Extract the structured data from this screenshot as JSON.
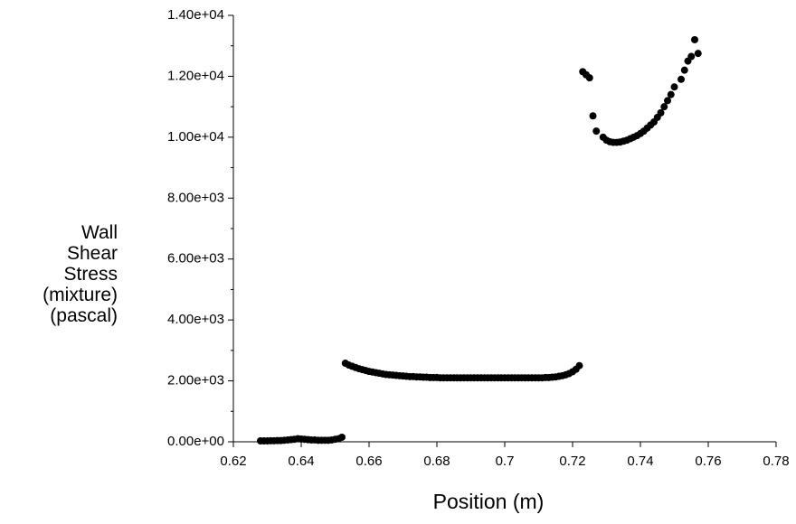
{
  "chart_data": {
    "type": "scatter",
    "x_label": "Position (m)",
    "y_label": "Wall Shear Stress (mixture) (pascal)",
    "color": "#000000",
    "xlim": [
      0.62,
      0.78
    ],
    "xticks": [
      0.62,
      0.64,
      0.66,
      0.68,
      0.7,
      0.72,
      0.74,
      0.76,
      0.78
    ],
    "ylim": [
      0,
      14000
    ],
    "yticks": [
      {
        "value": 0,
        "label": "0.00e+00"
      },
      {
        "value": 2000,
        "label": "2.00e+03"
      },
      {
        "value": 4000,
        "label": "4.00e+03"
      },
      {
        "value": 6000,
        "label": "6.00e+03"
      },
      {
        "value": 8000,
        "label": "8.00e+03"
      },
      {
        "value": 10000,
        "label": "1.00e+04"
      },
      {
        "value": 12000,
        "label": "1.20e+04"
      },
      {
        "value": 14000,
        "label": "1.40e+04"
      }
    ],
    "x": [
      0.628,
      0.629,
      0.63,
      0.631,
      0.632,
      0.633,
      0.634,
      0.635,
      0.636,
      0.637,
      0.638,
      0.639,
      0.64,
      0.641,
      0.642,
      0.643,
      0.644,
      0.645,
      0.646,
      0.647,
      0.648,
      0.649,
      0.65,
      0.651,
      0.652,
      0.653,
      0.654,
      0.655,
      0.656,
      0.657,
      0.658,
      0.659,
      0.66,
      0.661,
      0.662,
      0.663,
      0.664,
      0.665,
      0.666,
      0.667,
      0.668,
      0.669,
      0.67,
      0.671,
      0.672,
      0.673,
      0.674,
      0.675,
      0.676,
      0.677,
      0.678,
      0.679,
      0.68,
      0.681,
      0.682,
      0.683,
      0.684,
      0.685,
      0.686,
      0.687,
      0.688,
      0.689,
      0.69,
      0.691,
      0.692,
      0.693,
      0.694,
      0.695,
      0.696,
      0.697,
      0.698,
      0.699,
      0.7,
      0.701,
      0.702,
      0.703,
      0.704,
      0.705,
      0.706,
      0.707,
      0.708,
      0.709,
      0.71,
      0.711,
      0.712,
      0.713,
      0.714,
      0.715,
      0.716,
      0.717,
      0.718,
      0.719,
      0.72,
      0.721,
      0.722,
      0.723,
      0.724,
      0.725,
      0.726,
      0.727,
      0.729,
      0.73,
      0.731,
      0.732,
      0.733,
      0.734,
      0.735,
      0.736,
      0.737,
      0.738,
      0.739,
      0.74,
      0.741,
      0.742,
      0.743,
      0.744,
      0.745,
      0.746,
      0.747,
      0.748,
      0.749,
      0.75,
      0.752,
      0.753,
      0.754,
      0.755,
      0.756,
      0.757
    ],
    "values": [
      30,
      30,
      30,
      35,
      35,
      40,
      40,
      50,
      60,
      70,
      80,
      100,
      90,
      80,
      70,
      60,
      60,
      50,
      50,
      50,
      50,
      60,
      80,
      100,
      150,
      2580,
      2520,
      2480,
      2440,
      2400,
      2370,
      2340,
      2310,
      2290,
      2270,
      2250,
      2230,
      2210,
      2200,
      2190,
      2180,
      2170,
      2160,
      2150,
      2140,
      2140,
      2130,
      2130,
      2120,
      2120,
      2110,
      2110,
      2110,
      2100,
      2100,
      2100,
      2100,
      2100,
      2100,
      2100,
      2100,
      2100,
      2100,
      2100,
      2100,
      2100,
      2100,
      2100,
      2100,
      2100,
      2100,
      2100,
      2100,
      2100,
      2100,
      2100,
      2100,
      2100,
      2100,
      2100,
      2100,
      2100,
      2100,
      2100,
      2110,
      2110,
      2120,
      2130,
      2150,
      2170,
      2200,
      2240,
      2300,
      2380,
      2500,
      12150,
      12050,
      11950,
      10700,
      10200,
      10000,
      9900,
      9850,
      9830,
      9830,
      9840,
      9870,
      9900,
      9950,
      10000,
      10050,
      10120,
      10200,
      10300,
      10400,
      10500,
      10650,
      10800,
      11000,
      11200,
      11400,
      11650,
      11900,
      12200,
      12500,
      12650,
      13200,
      12750
    ]
  }
}
